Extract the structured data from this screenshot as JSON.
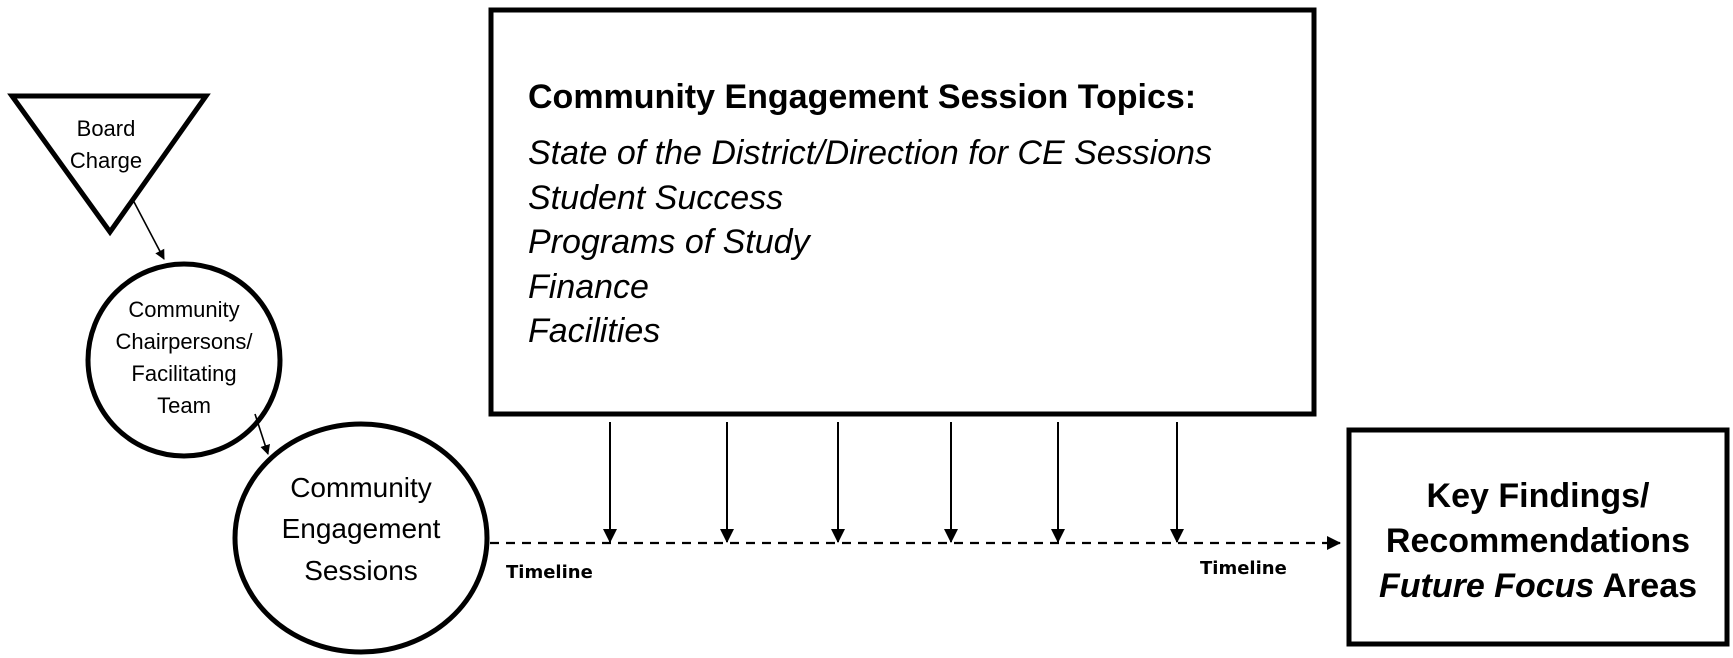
{
  "triangle": {
    "lines": [
      "Board",
      "Charge"
    ]
  },
  "chairpersons": {
    "lines": [
      "Community",
      "Chairpersons/",
      "Facilitating",
      "Team"
    ]
  },
  "sessions": {
    "lines": [
      "Community",
      "Engagement",
      "Sessions"
    ]
  },
  "topics_box": {
    "title": "Community Engagement Session Topics:",
    "topics": [
      "State of the District/Direction for CE Sessions",
      "Student Success",
      "Programs of Study",
      "Finance",
      "Facilities"
    ]
  },
  "results_box": {
    "line1": "Key Findings/",
    "line2": "Recommendations",
    "line3_italic": "Future Focus",
    "line3_rest": " Areas"
  },
  "timeline": {
    "label_left": "Timeline",
    "label_right": "Timeline"
  },
  "colors": {
    "stroke": "#000000",
    "background": "#ffffff"
  }
}
